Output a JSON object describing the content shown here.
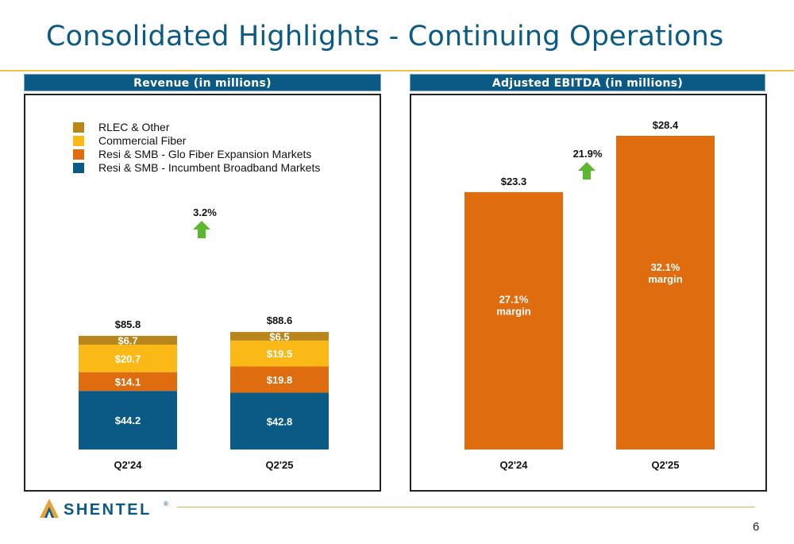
{
  "title": "Consolidated Highlights - Continuing Operations",
  "page_number": "6",
  "logo_text": "SHENTEL",
  "logo_mark": "®",
  "colors": {
    "title": "#0b5a86",
    "rlec": "#b8861b",
    "commercial": "#fbb917",
    "glo": "#e06c10",
    "incumbent": "#0b5a86",
    "ebitda": "#e06c10",
    "arrow": "#5cb82e"
  },
  "chart_data": [
    {
      "type": "bar",
      "stacked": true,
      "title": "Revenue (in millions)",
      "categories": [
        "Q2'24",
        "Q2'25"
      ],
      "series": [
        {
          "name": "Resi & SMB - Incumbent Broadband Markets",
          "values": [
            44.2,
            42.8
          ],
          "labels": [
            "$44.2",
            "$42.8"
          ],
          "color": "#0b5a86"
        },
        {
          "name": "Resi & SMB - Glo Fiber Expansion Markets",
          "values": [
            14.1,
            19.8
          ],
          "labels": [
            "$14.1",
            "$19.8"
          ],
          "color": "#e06c10"
        },
        {
          "name": "Commercial Fiber",
          "values": [
            20.7,
            19.5
          ],
          "labels": [
            "$20.7",
            "$19.5"
          ],
          "color": "#fbb917"
        },
        {
          "name": "RLEC & Other",
          "values": [
            6.7,
            6.5
          ],
          "labels": [
            "$6.7",
            "$6.5"
          ],
          "color": "#b8861b"
        }
      ],
      "totals": [
        85.8,
        88.6
      ],
      "total_labels": [
        "$85.8",
        "$88.6"
      ],
      "legend_order": [
        "RLEC & Other",
        "Commercial Fiber",
        "Resi & SMB - Glo Fiber Expansion Markets",
        "Resi & SMB - Incumbent Broadband Markets"
      ],
      "legend_position": "top-left",
      "growth_label": "3.2%",
      "ylim": [
        0,
        100
      ],
      "grid": false
    },
    {
      "type": "bar",
      "title": "Adjusted EBITDA (in millions)",
      "categories": [
        "Q2'24",
        "Q2'25"
      ],
      "values": [
        23.3,
        28.4
      ],
      "value_labels": [
        "$23.3",
        "$28.4"
      ],
      "inner_labels": [
        [
          "27.1%",
          "margin"
        ],
        [
          "32.1%",
          "margin"
        ]
      ],
      "growth_label": "21.9%",
      "color": "#e06c10",
      "ylim": [
        0,
        33
      ],
      "grid": false
    }
  ]
}
